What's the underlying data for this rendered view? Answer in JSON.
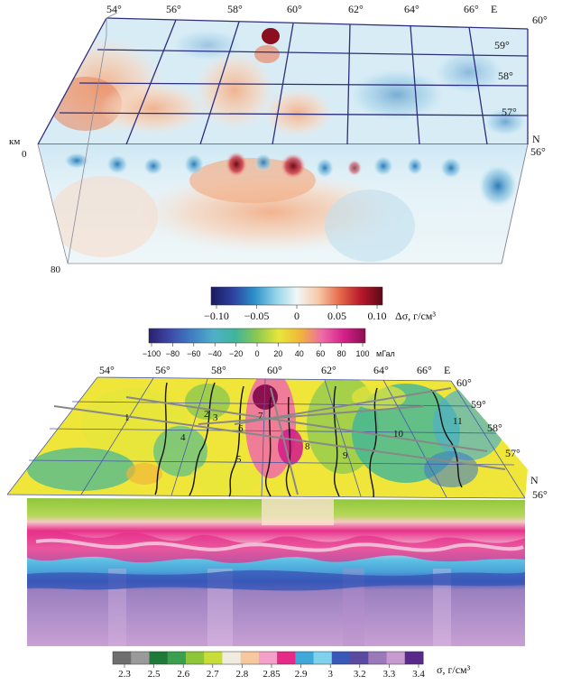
{
  "top_block": {
    "depth_unit": "км",
    "depth_top": "0",
    "depth_bottom": "80",
    "lon_labels": [
      "54°",
      "56°",
      "58°",
      "60°",
      "62°",
      "64°",
      "66°"
    ],
    "east_label": "E",
    "lat_labels": [
      "60°",
      "59°",
      "58°",
      "57°",
      "56°"
    ],
    "north_label": "N"
  },
  "density_scale": {
    "ticks": [
      "−0.10",
      "−0.05",
      "0",
      "0.05",
      "0.10"
    ],
    "unit": "Δσ, г/см³",
    "colors": [
      "#1a1a5e",
      "#2e3f9e",
      "#2b8fc8",
      "#8fd2e8",
      "#f2f7f8",
      "#f7c9a8",
      "#e66a4a",
      "#b8182a",
      "#5a0a18"
    ]
  },
  "gravity_scale": {
    "ticks": [
      "−100",
      "−80",
      "−60",
      "−40",
      "−20",
      "0",
      "20",
      "40",
      "60",
      "80",
      "100"
    ],
    "unit": "мГал",
    "colors": [
      "#2a1f6e",
      "#3d4aa8",
      "#3f7fc4",
      "#4fb0c8",
      "#3fb59a",
      "#8cc850",
      "#e8e63a",
      "#f0b63a",
      "#ee6aa8",
      "#d4208a",
      "#8a1050"
    ]
  },
  "bottom_block": {
    "lon_labels": [
      "54°",
      "56°",
      "58°",
      "60°",
      "62°",
      "64°",
      "66°"
    ],
    "east_label": "E",
    "lat_labels": [
      "60°",
      "59°",
      "58°",
      "57°",
      "56°"
    ],
    "north_label": "N",
    "zone_labels": [
      "1",
      "2",
      "3",
      "4",
      "5",
      "6",
      "7",
      "8",
      "9",
      "10",
      "11"
    ]
  },
  "sigma_scale": {
    "ticks": [
      "2.3",
      "2.5",
      "2.6",
      "2.7",
      "2.8",
      "2.85",
      "2.9",
      "3",
      "3.2",
      "3.3",
      "3.4"
    ],
    "unit": "σ, г/см³",
    "colors": [
      "#6e6e6e",
      "#9a9a9a",
      "#1f7a3a",
      "#3aa050",
      "#8ec63a",
      "#c8dc3a",
      "#f0ece0",
      "#f6c8a0",
      "#f4a0c8",
      "#e62a86",
      "#3fa8d8",
      "#7ed2ec",
      "#3a58b8",
      "#5a4aa0",
      "#9a7ab8",
      "#c89ad0",
      "#5a2a8a"
    ]
  }
}
